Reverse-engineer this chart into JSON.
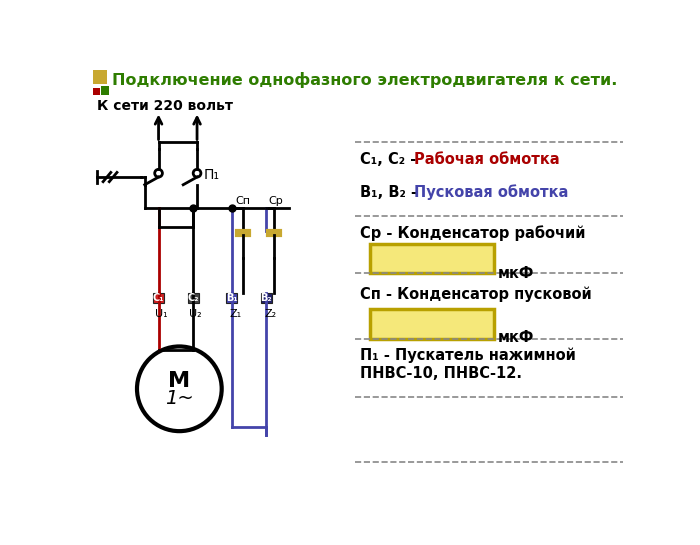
{
  "title": "Подключение однофазного электродвигателя к сети.",
  "title_color": "#2e7d00",
  "bg_color": "#ffffff",
  "label_220": "К сети 220 вольт",
  "label_M": "М",
  "label_1ph": "1~",
  "label_P1": "П₁",
  "label_Cn": "Сп",
  "label_Cr": "Ср",
  "label_C1": "С₁",
  "label_C2": "С₂",
  "label_B1": "В₁",
  "label_B2": "В₂",
  "label_U1": "U₁",
  "label_U2": "U₂",
  "label_Z1": "Z₁",
  "label_Z2": "Z₂",
  "legend_C1C2_black": "С₁, С₂ - ",
  "legend_C1C2_red": "Рабочая обмотка",
  "legend_B1B2_black": "В₁, В₂ - ",
  "legend_B1B2_blue": "Пусковая обмотка",
  "legend_Cr_label": "Ср - Конденсатор рабочий",
  "legend_mkF1": "мкФ",
  "legend_Cn_label": "Сп - Конденсатор пусковой",
  "legend_mkF2": "мкФ",
  "legend_P1_line1": "П₁ - Пускатель нажимной",
  "legend_P1_line2": "ПНВС-10, ПНВС-12.",
  "color_red": "#aa0000",
  "color_blue": "#4444aa",
  "color_dark_red": "#660000",
  "color_dark_blue": "#222266",
  "color_black": "#000000",
  "color_cap_fill": "#c8a830",
  "color_box_fill": "#f5e87a",
  "color_box_edge": "#b8a000",
  "icon_yellow": "#c8a830",
  "icon_red": "#aa0000",
  "icon_green": "#2e7d00",
  "sep_color": "#888888",
  "lw": 2.0,
  "cap_lw": 3.0
}
